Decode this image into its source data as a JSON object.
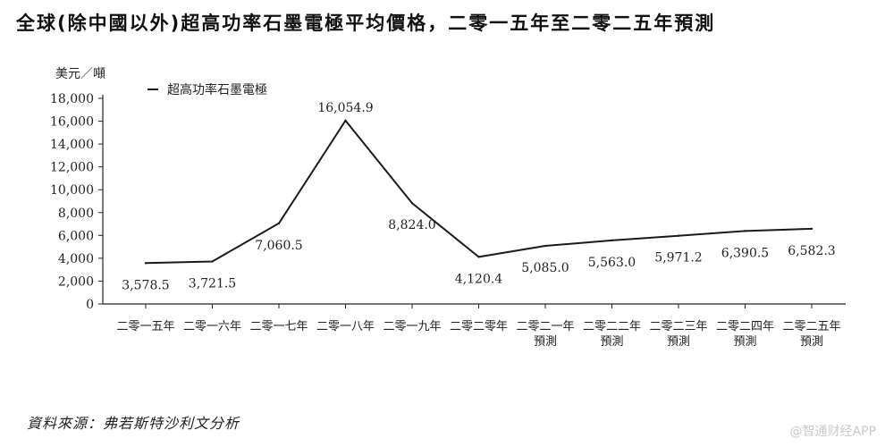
{
  "title": "全球(除中國以外)超高功率石墨電極平均價格，二零一五年至二零二五年預測",
  "source": "資料來源：弗若斯特沙利文分析",
  "watermark": "@智通财经APP",
  "chart_data": {
    "type": "line",
    "title": "全球(除中國以外)超高功率石墨電極平均價格，二零一五年至二零二五年預測",
    "ylabel": "美元／噸",
    "xlabel": "",
    "ylim": [
      0,
      18000
    ],
    "yticks": [
      "0",
      "2,000",
      "4,000",
      "6,000",
      "8,000",
      "10,000",
      "12,000",
      "14,000",
      "16,000",
      "18,000"
    ],
    "categories": [
      [
        "二零一五年"
      ],
      [
        "二零一六年"
      ],
      [
        "二零一七年"
      ],
      [
        "二零一八年"
      ],
      [
        "二零一九年"
      ],
      [
        "二零二零年"
      ],
      [
        "二零二一年",
        "預測"
      ],
      [
        "二零二二年",
        "預測"
      ],
      [
        "二零二三年",
        "預測"
      ],
      [
        "二零二四年",
        "預測"
      ],
      [
        "二零二五年",
        "預測"
      ]
    ],
    "series": [
      {
        "name": "超高功率石墨電極",
        "values": [
          3578.5,
          3721.5,
          7060.5,
          16054.9,
          8824.0,
          4120.4,
          5085.0,
          5563.0,
          5971.2,
          6390.5,
          6582.3
        ],
        "labels": [
          "3,578.5",
          "3,721.5",
          "7,060.5",
          "16,054.9",
          "8,824.0",
          "4,120.4",
          "5,085.0",
          "5,563.0",
          "5,971.2",
          "6,390.5",
          "6,582.3"
        ],
        "color": "#1a1a1a"
      }
    ],
    "legend_position": "top-left",
    "grid": false
  }
}
